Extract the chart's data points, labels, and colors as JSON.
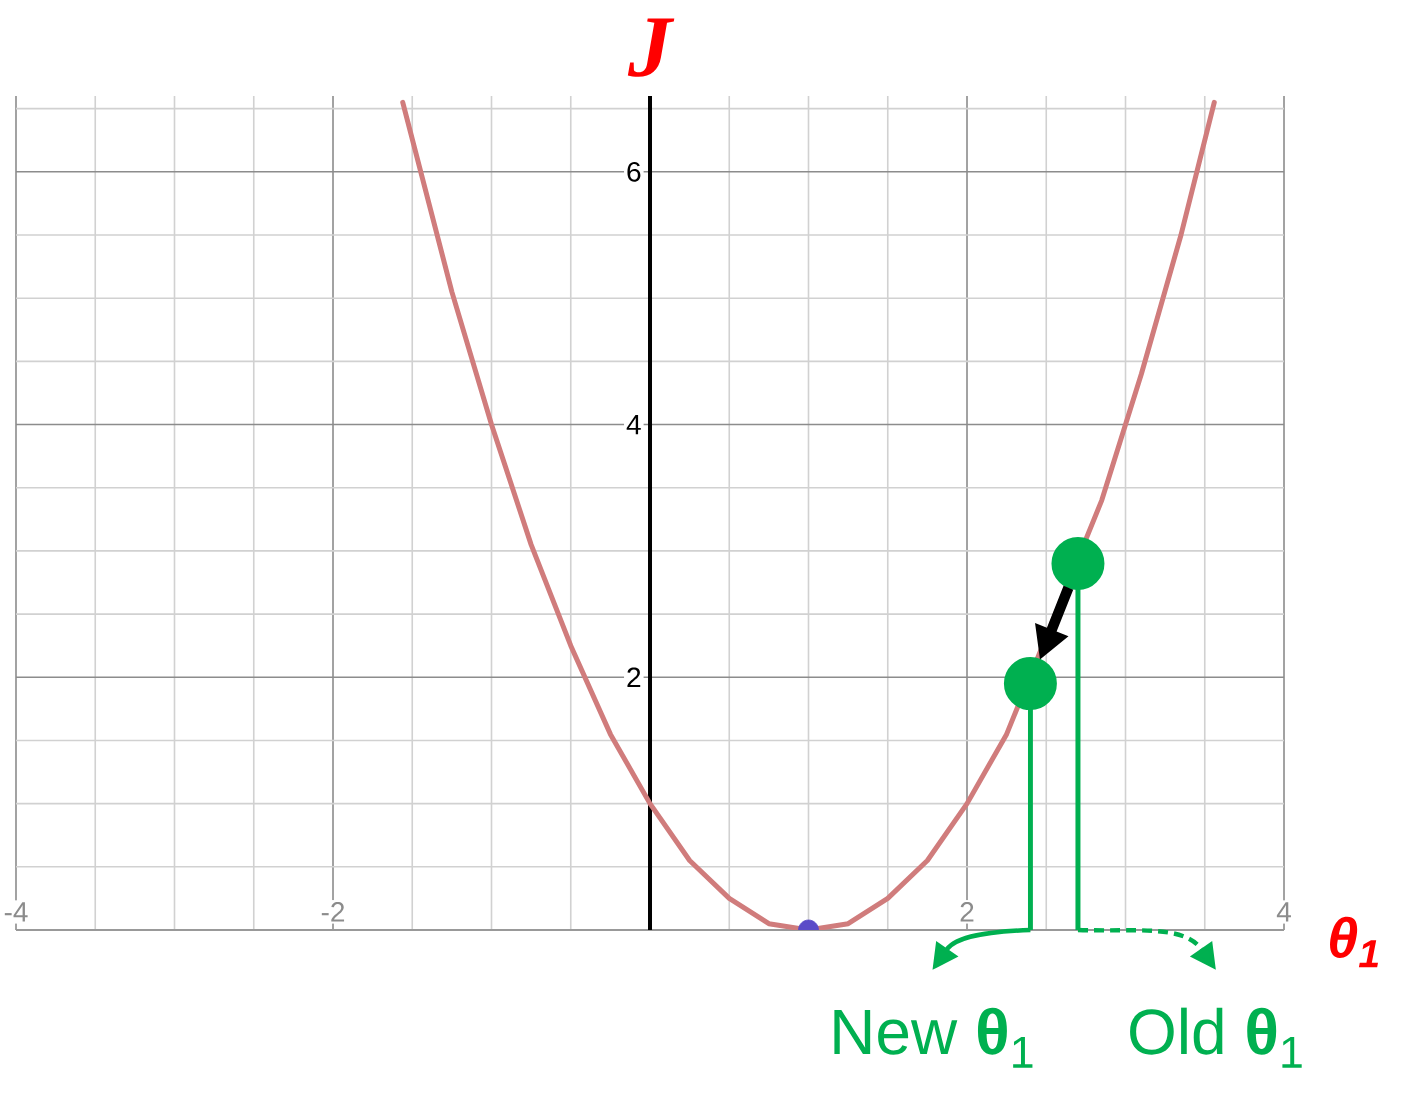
{
  "chart_data": {
    "type": "line",
    "xlabel": "θ$_{1}$",
    "ylabel": "J",
    "x": [
      -1.56,
      -1.25,
      -1,
      -0.75,
      -0.5,
      -0.25,
      0,
      0.25,
      0.5,
      0.75,
      1,
      1.25,
      1.5,
      1.75,
      2,
      2.25,
      2.85,
      3.1,
      3.35,
      3.56
    ],
    "series": [
      {
        "color": "#d07c7c",
        "marker": "none",
        "values": [
          6.55,
          5.05,
          4,
          3.05,
          2.25,
          1.55,
          1,
          0.55,
          0.25,
          0.05,
          0,
          0.05,
          0.25,
          0.55,
          1,
          1.55,
          3.4,
          4.4,
          5.5,
          6.55
        ]
      },
      {
        "type": "scatter",
        "color": "#5b4bc8",
        "marker": "circle",
        "x": [
          1
        ],
        "values": [
          0
        ]
      },
      {
        "type": "lollipop",
        "color": "#00b050",
        "marker": "circle",
        "x": [
          2.4,
          2.7
        ],
        "values": [
          1.95,
          2.9
        ]
      }
    ],
    "xlim": [
      -4,
      4
    ],
    "ylim": [
      0,
      6.6
    ],
    "xticks": [
      -4,
      {
        "value": -3.5,
        "label": null
      },
      {
        "value": -3,
        "label": null
      },
      {
        "value": -2.5,
        "label": null
      },
      -2,
      {
        "value": -1.5,
        "label": null
      },
      {
        "value": -1,
        "label": null
      },
      {
        "value": -0.5,
        "label": null
      },
      {
        "value": 0.5,
        "label": null
      },
      {
        "value": 1,
        "label": null
      },
      {
        "value": 1.5,
        "label": null
      },
      2,
      {
        "value": 2.5,
        "label": null
      },
      {
        "value": 3,
        "label": null
      },
      {
        "value": 3.5,
        "label": null
      },
      4
    ],
    "yticks": [
      {
        "value": 0.5,
        "label": null
      },
      {
        "value": 1,
        "label": null
      },
      {
        "value": 1.5,
        "label": null
      },
      2,
      {
        "value": 2.5,
        "label": null
      },
      {
        "value": 3,
        "label": null
      },
      {
        "value": 3.5,
        "label": null
      },
      4,
      {
        "value": 4.5,
        "label": null
      },
      {
        "value": 5,
        "label": null
      },
      {
        "value": 5.5,
        "label": null
      },
      6,
      {
        "value": 6.5,
        "label": null
      }
    ],
    "grid": true,
    "annotations": [
      "New **θ**$_{1}$",
      "Old **θ**$_{1}$"
    ]
  }
}
